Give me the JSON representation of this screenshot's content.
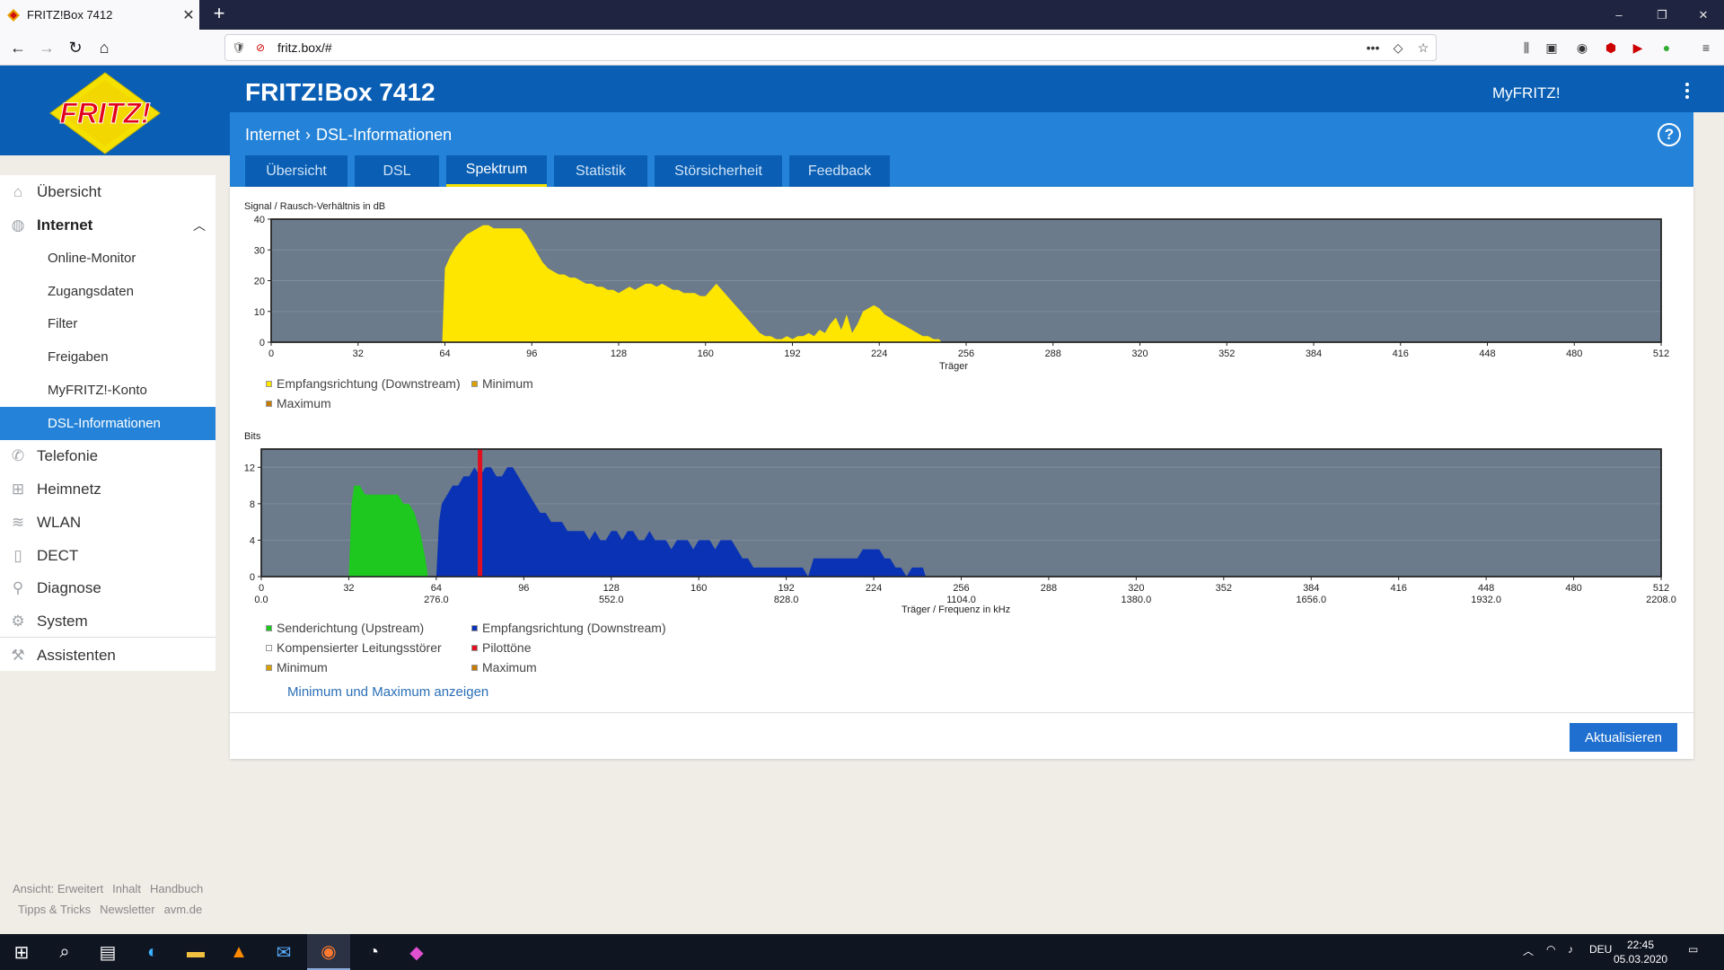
{
  "browser": {
    "tab_title": "FRITZ!Box 7412",
    "url": "fritz.box/#",
    "window_controls": [
      "–",
      "❐",
      "✕"
    ]
  },
  "header": {
    "product": "FRITZ!Box 7412",
    "myfritz": "MyFRITZ!",
    "breadcrumb": [
      "Internet",
      "DSL-Informationen"
    ],
    "help": "?"
  },
  "tabs": [
    "Übersicht",
    "DSL",
    "Spektrum",
    "Statistik",
    "Störsicherheit",
    "Feedback"
  ],
  "active_tab": "Spektrum",
  "sidebar": {
    "items": [
      {
        "label": "Übersicht",
        "icon": "home-icon"
      },
      {
        "label": "Internet",
        "icon": "globe-icon",
        "expanded": true
      },
      {
        "label": "Telefonie",
        "icon": "phone-icon"
      },
      {
        "label": "Heimnetz",
        "icon": "network-icon"
      },
      {
        "label": "WLAN",
        "icon": "wifi-icon"
      },
      {
        "label": "DECT",
        "icon": "dect-icon"
      },
      {
        "label": "Diagnose",
        "icon": "diagnose-icon"
      },
      {
        "label": "System",
        "icon": "gear-icon"
      },
      {
        "label": "Assistenten",
        "icon": "wizard-icon"
      }
    ],
    "subitems": [
      "Online-Monitor",
      "Zugangsdaten",
      "Filter",
      "Freigaben",
      "MyFRITZ!-Konto",
      "DSL-Informationen"
    ],
    "active_subitem": "DSL-Informationen"
  },
  "footer": {
    "row1": [
      "Ansicht: Erweitert",
      "Inhalt",
      "Handbuch"
    ],
    "row2": [
      "Tipps & Tricks",
      "Newsletter",
      "avm.de"
    ]
  },
  "chart_data": [
    {
      "type": "area",
      "title": "Signal / Rausch-Verhältnis in dB",
      "xlabel": "Träger",
      "ylabel": "",
      "xlim": [
        0,
        512
      ],
      "ylim": [
        0,
        40
      ],
      "xticks": [
        0,
        32,
        64,
        96,
        128,
        160,
        192,
        224,
        256,
        288,
        320,
        352,
        384,
        416,
        448,
        480,
        512
      ],
      "yticks": [
        0,
        10,
        20,
        30,
        40
      ],
      "series": [
        {
          "name": "Empfangsrichtung (Downstream)",
          "color": "#ffe600",
          "x": [
            63,
            64,
            66,
            68,
            70,
            72,
            74,
            76,
            78,
            80,
            82,
            84,
            86,
            88,
            90,
            92,
            94,
            96,
            98,
            100,
            102,
            104,
            106,
            108,
            110,
            112,
            114,
            116,
            118,
            120,
            122,
            124,
            126,
            128,
            130,
            132,
            134,
            136,
            138,
            140,
            142,
            144,
            146,
            148,
            150,
            152,
            154,
            156,
            158,
            160,
            162,
            164,
            166,
            168,
            170,
            172,
            174,
            176,
            178,
            180,
            182,
            184,
            186,
            188,
            190,
            192,
            194,
            196,
            198,
            200,
            202,
            204,
            206,
            208,
            210,
            212,
            214,
            216,
            218,
            220,
            222,
            224,
            226,
            228,
            230,
            232,
            234,
            236,
            238,
            240,
            242,
            244,
            246,
            247
          ],
          "values": [
            0,
            24,
            28,
            31,
            33,
            35,
            36,
            37,
            38,
            38,
            37,
            37,
            37,
            37,
            37,
            37,
            35,
            32,
            29,
            26,
            24,
            23,
            22,
            22,
            21,
            21,
            20,
            19,
            19,
            18,
            18,
            17,
            17,
            16,
            17,
            18,
            17,
            18,
            19,
            19,
            18,
            19,
            18,
            17,
            17,
            16,
            16,
            16,
            15,
            15,
            17,
            19,
            17,
            15,
            13,
            11,
            9,
            7,
            5,
            3,
            2,
            2,
            1,
            1,
            2,
            1,
            2,
            2,
            3,
            2,
            4,
            3,
            6,
            8,
            4,
            9,
            3,
            6,
            10,
            11,
            12,
            11,
            9,
            8,
            7,
            6,
            5,
            4,
            3,
            2,
            2,
            1,
            1,
            0
          ]
        },
        {
          "name": "Minimum",
          "color": "#d9a000",
          "values": []
        },
        {
          "name": "Maximum",
          "color": "#c77a00",
          "values": []
        }
      ],
      "legend": "bottom-left",
      "grid": false
    },
    {
      "type": "area",
      "title": "Bits",
      "xlabel": "Träger / Frequenz in kHz",
      "ylabel": "",
      "xlim": [
        0,
        512
      ],
      "ylim": [
        0,
        14
      ],
      "xticks": [
        0,
        32,
        64,
        96,
        128,
        160,
        192,
        224,
        256,
        288,
        320,
        352,
        384,
        416,
        448,
        480,
        512
      ],
      "xticks_khz": [
        "0.0",
        "276.0",
        "552.0",
        "828.0",
        "1104.0",
        "1380.0",
        "1656.0",
        "1932.0",
        "2208.0"
      ],
      "yticks": [
        0,
        4,
        8,
        12
      ],
      "series": [
        {
          "name": "Senderichtung (Upstream)",
          "color": "#1ec81e",
          "x": [
            32,
            33,
            34,
            36,
            38,
            40,
            42,
            44,
            46,
            48,
            50,
            52,
            54,
            56,
            58,
            60,
            61
          ],
          "values": [
            0,
            8,
            10,
            10,
            9,
            9,
            9,
            9,
            9,
            9,
            9,
            8,
            8,
            7,
            5,
            2,
            0
          ]
        },
        {
          "name": "Empfangsrichtung (Downstream)",
          "color": "#0a32b4",
          "x": [
            64,
            65,
            66,
            68,
            70,
            72,
            74,
            76,
            78,
            80,
            82,
            84,
            86,
            88,
            90,
            92,
            94,
            96,
            98,
            100,
            102,
            104,
            106,
            108,
            110,
            112,
            114,
            116,
            118,
            120,
            122,
            124,
            126,
            128,
            130,
            132,
            134,
            136,
            138,
            140,
            142,
            144,
            146,
            148,
            150,
            152,
            154,
            156,
            158,
            160,
            162,
            164,
            166,
            168,
            170,
            172,
            174,
            176,
            178,
            180,
            182,
            184,
            186,
            188,
            190,
            192,
            194,
            196,
            198,
            200,
            202,
            204,
            206,
            208,
            210,
            212,
            214,
            216,
            218,
            220,
            222,
            224,
            226,
            228,
            230,
            232,
            234,
            236,
            238,
            240,
            242,
            243
          ],
          "values": [
            0,
            6,
            8,
            9,
            10,
            10,
            11,
            11,
            12,
            11,
            12,
            12,
            11,
            11,
            12,
            12,
            11,
            10,
            9,
            8,
            7,
            7,
            6,
            6,
            6,
            5,
            5,
            5,
            5,
            4,
            5,
            4,
            4,
            5,
            5,
            4,
            5,
            5,
            4,
            4,
            5,
            4,
            4,
            4,
            3,
            4,
            4,
            4,
            3,
            4,
            4,
            4,
            3,
            4,
            4,
            4,
            3,
            2,
            2,
            1,
            1,
            1,
            1,
            1,
            1,
            1,
            1,
            1,
            1,
            0,
            2,
            2,
            2,
            2,
            2,
            2,
            2,
            2,
            2,
            3,
            3,
            3,
            3,
            2,
            2,
            1,
            1,
            0,
            1,
            1,
            1,
            0
          ]
        },
        {
          "name": "Kompensierter Leitungsstörer",
          "color": "#ffffff",
          "values": []
        },
        {
          "name": "Pilottöne",
          "color": "#e01020",
          "x": [
            80
          ],
          "values": [
            14
          ]
        },
        {
          "name": "Minimum",
          "color": "#d9a000",
          "values": []
        },
        {
          "name": "Maximum",
          "color": "#c77a00",
          "values": []
        }
      ],
      "legend": "bottom-left",
      "grid": false
    }
  ],
  "minmax_link": "Minimum und Maximum anzeigen",
  "refresh_button": "Aktualisieren",
  "taskbar": {
    "lang": "DEU",
    "time": "22:45",
    "date": "05.03.2020"
  }
}
